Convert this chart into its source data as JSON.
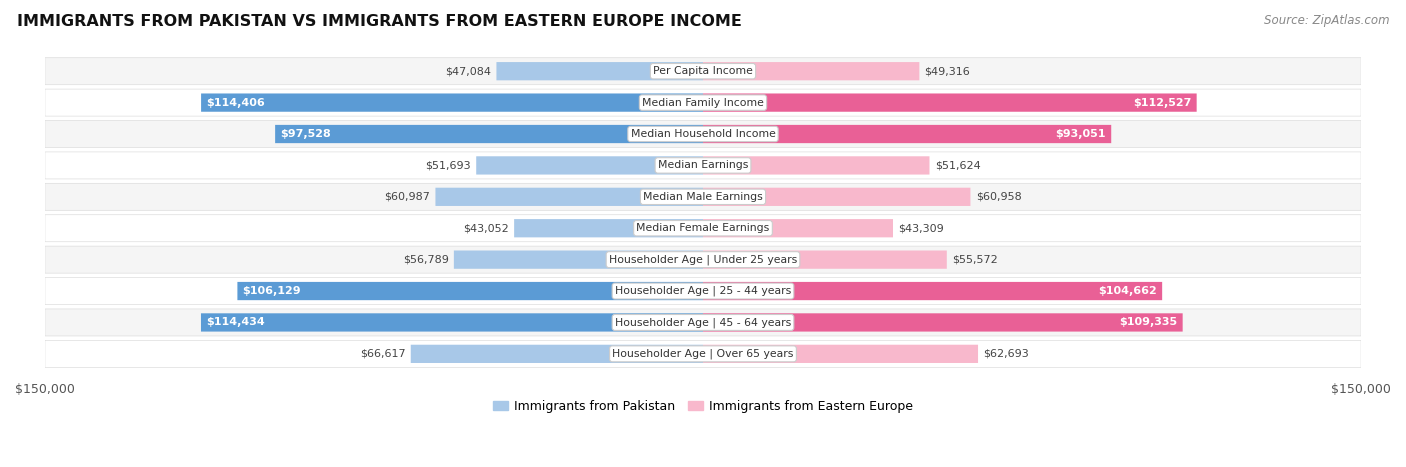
{
  "title": "IMMIGRANTS FROM PAKISTAN VS IMMIGRANTS FROM EASTERN EUROPE INCOME",
  "source": "Source: ZipAtlas.com",
  "categories": [
    "Per Capita Income",
    "Median Family Income",
    "Median Household Income",
    "Median Earnings",
    "Median Male Earnings",
    "Median Female Earnings",
    "Householder Age | Under 25 years",
    "Householder Age | 25 - 44 years",
    "Householder Age | 45 - 64 years",
    "Householder Age | Over 65 years"
  ],
  "pakistan_values": [
    47084,
    114406,
    97528,
    51693,
    60987,
    43052,
    56789,
    106129,
    114434,
    66617
  ],
  "eastern_europe_values": [
    49316,
    112527,
    93051,
    51624,
    60958,
    43309,
    55572,
    104662,
    109335,
    62693
  ],
  "pakistan_labels": [
    "$47,084",
    "$114,406",
    "$97,528",
    "$51,693",
    "$60,987",
    "$43,052",
    "$56,789",
    "$106,129",
    "$114,434",
    "$66,617"
  ],
  "eastern_europe_labels": [
    "$49,316",
    "$112,527",
    "$93,051",
    "$51,624",
    "$60,958",
    "$43,309",
    "$55,572",
    "$104,662",
    "$109,335",
    "$62,693"
  ],
  "pak_color_light": "#a8c8e8",
  "pak_color_dark": "#5b9bd5",
  "ee_color_light": "#f8b8cc",
  "ee_color_dark": "#e96096",
  "max_value": 150000,
  "label_threshold": 75000,
  "legend_pakistan": "Immigrants from Pakistan",
  "legend_eastern_europe": "Immigrants from Eastern Europe",
  "row_colors": [
    "#f5f5f5",
    "#ffffff",
    "#f5f5f5",
    "#ffffff",
    "#f5f5f5",
    "#ffffff",
    "#f5f5f5",
    "#ffffff",
    "#f5f5f5",
    "#ffffff"
  ]
}
